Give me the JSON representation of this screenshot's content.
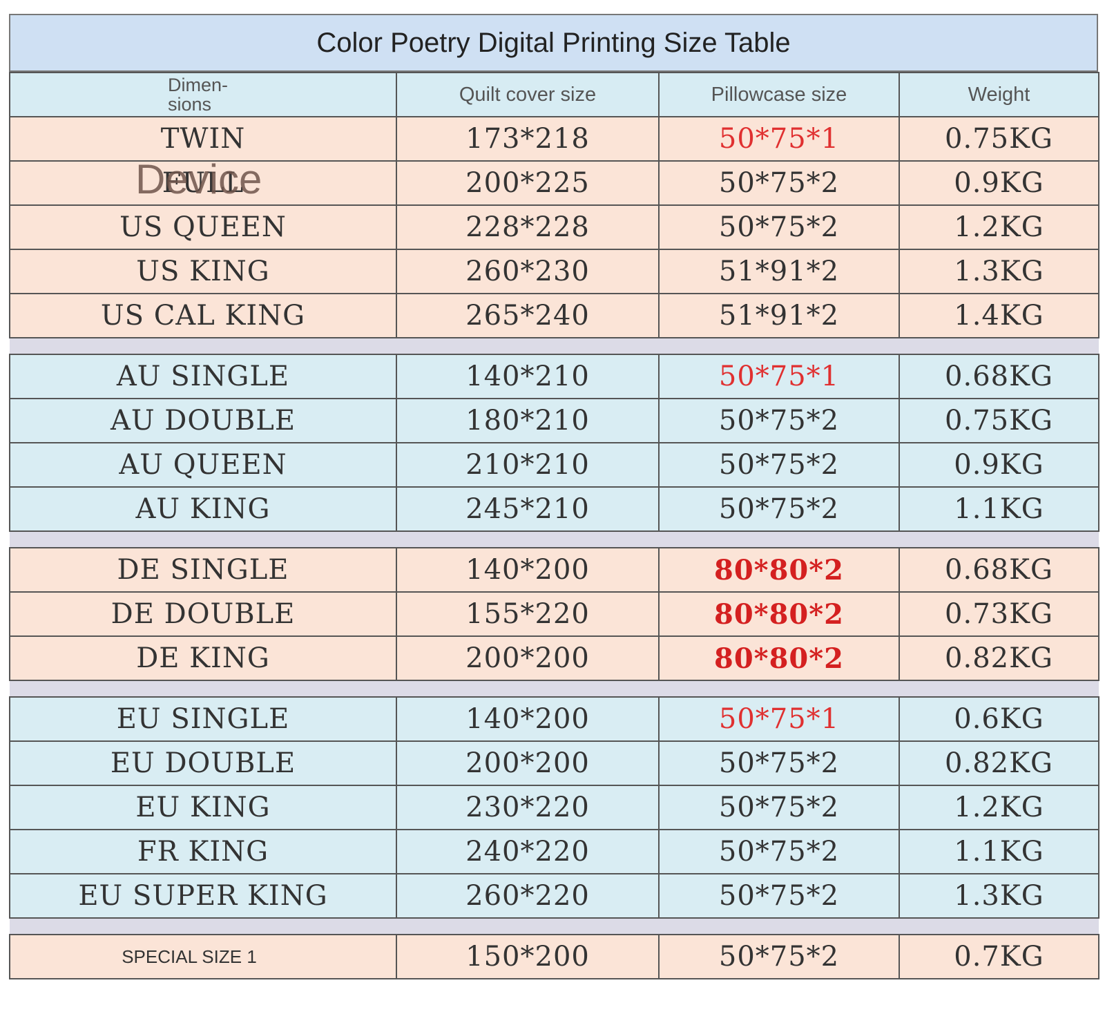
{
  "title": "Color Poetry Digital Printing Size Table",
  "headers": [
    "Dimen-\nsions",
    "Quilt cover size",
    "Pillowcase size",
    "Weight"
  ],
  "watermark": "Device",
  "colors": {
    "peach": "#fbe4d7",
    "blue": "#d9edf3",
    "red": "#e03030"
  },
  "groups": [
    {
      "tone": "peach",
      "rows": [
        {
          "dim": "TWIN",
          "quilt": "173*218",
          "pillow": "50*75*1",
          "weight": "0.75KG",
          "pillow_style": "red"
        },
        {
          "dim": "FULL",
          "quilt": "200*225",
          "pillow": "50*75*2",
          "weight": "0.9KG"
        },
        {
          "dim": "US QUEEN",
          "quilt": "228*228",
          "pillow": "50*75*2",
          "weight": "1.2KG"
        },
        {
          "dim": "US KING",
          "quilt": "260*230",
          "pillow": "51*91*2",
          "weight": "1.3KG"
        },
        {
          "dim": "US CAL KING",
          "quilt": "265*240",
          "pillow": "51*91*2",
          "weight": "1.4KG"
        }
      ]
    },
    {
      "tone": "blue",
      "rows": [
        {
          "dim": "AU SINGLE",
          "quilt": "140*210",
          "pillow": "50*75*1",
          "weight": "0.68KG",
          "pillow_style": "red"
        },
        {
          "dim": "AU DOUBLE",
          "quilt": "180*210",
          "pillow": "50*75*2",
          "weight": "0.75KG"
        },
        {
          "dim": "AU QUEEN",
          "quilt": "210*210",
          "pillow": "50*75*2",
          "weight": "0.9KG"
        },
        {
          "dim": "AU KING",
          "quilt": "245*210",
          "pillow": "50*75*2",
          "weight": "1.1KG"
        }
      ]
    },
    {
      "tone": "peach",
      "rows": [
        {
          "dim": "DE SINGLE",
          "quilt": "140*200",
          "pillow": "80*80*2",
          "weight": "0.68KG",
          "pillow_style": "red-bold"
        },
        {
          "dim": "DE DOUBLE",
          "quilt": "155*220",
          "pillow": "80*80*2",
          "weight": "0.73KG",
          "pillow_style": "red-bold"
        },
        {
          "dim": "DE KING",
          "quilt": "200*200",
          "pillow": "80*80*2",
          "weight": "0.82KG",
          "pillow_style": "red-bold"
        }
      ]
    },
    {
      "tone": "blue",
      "rows": [
        {
          "dim": "EU SINGLE",
          "quilt": "140*200",
          "pillow": "50*75*1",
          "weight": "0.6KG",
          "pillow_style": "red"
        },
        {
          "dim": "EU DOUBLE",
          "quilt": "200*200",
          "pillow": "50*75*2",
          "weight": "0.82KG"
        },
        {
          "dim": "EU KING",
          "quilt": "230*220",
          "pillow": "50*75*2",
          "weight": "1.2KG"
        },
        {
          "dim": "FR KING",
          "quilt": "240*220",
          "pillow": "50*75*2",
          "weight": "1.1KG"
        },
        {
          "dim": "EU SUPER KING",
          "quilt": "260*220",
          "pillow": "50*75*2",
          "weight": "1.3KG"
        }
      ]
    },
    {
      "tone": "peach",
      "rows": [
        {
          "dim": "SPECIAL SIZE 1",
          "quilt": "150*200",
          "pillow": "50*75*2",
          "weight": "0.7KG",
          "dim_style": "small"
        }
      ]
    }
  ]
}
